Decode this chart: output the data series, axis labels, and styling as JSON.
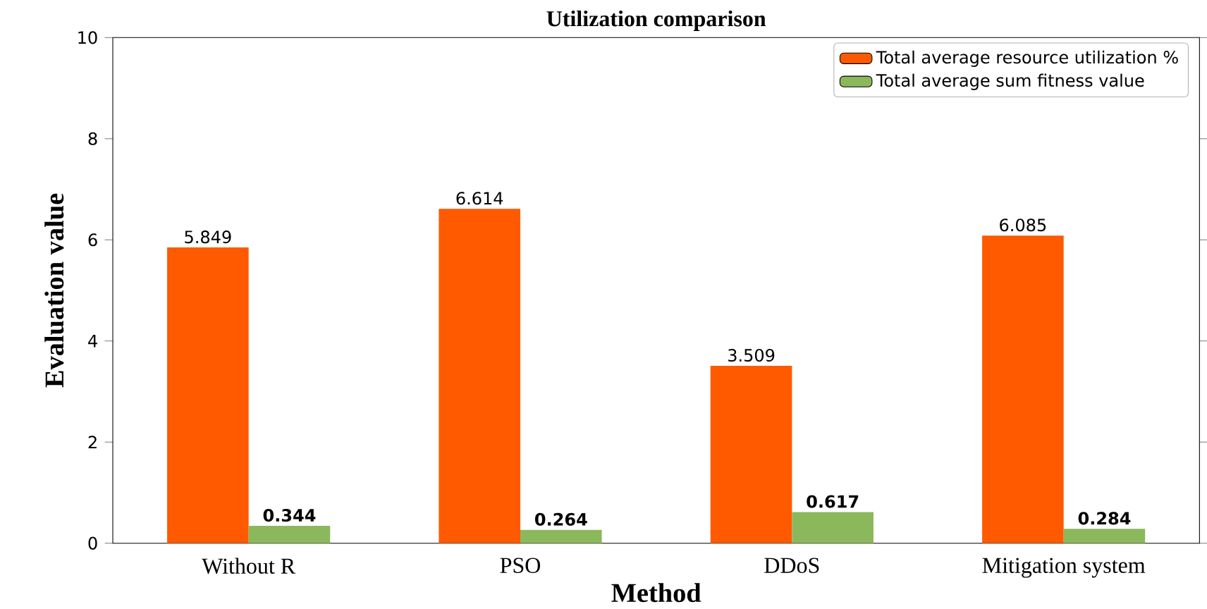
{
  "chart_data": {
    "type": "bar",
    "title": "Utilization comparison",
    "xlabel": "Method",
    "ylabel": "Evaluation value",
    "categories": [
      "Without R",
      "PSO",
      "DDoS",
      "Mitigation system"
    ],
    "series": [
      {
        "name": "Total average resource utilization %",
        "color": "#ff5a00",
        "values": [
          5.849,
          6.614,
          3.509,
          6.085
        ]
      },
      {
        "name": "Total average sum fitness value",
        "color": "#8cb85c",
        "values": [
          0.344,
          0.264,
          0.617,
          0.284
        ]
      }
    ],
    "ylim": [
      0,
      10
    ],
    "yticks": [
      0,
      2,
      4,
      6,
      8,
      10
    ],
    "legend": "top right",
    "data_labels": true
  }
}
